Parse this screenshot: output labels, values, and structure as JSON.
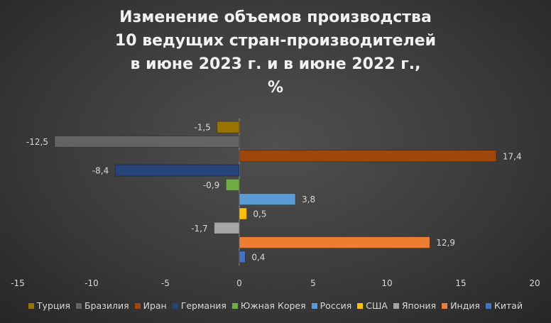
{
  "chart_data": {
    "type": "bar",
    "orientation": "horizontal",
    "title": "Изменение объемов производства\n10 ведущих стран-производителей\nв июне 2023 г. и в июне 2022 г.,\n%",
    "categories": [
      "Китай",
      "Индия",
      "Япония",
      "США",
      "Россия",
      "Южная Корея",
      "Германия",
      "Иран",
      "Бразилия",
      "Турция"
    ],
    "values": [
      0.4,
      12.9,
      -1.7,
      0.5,
      3.8,
      -0.9,
      -8.4,
      17.4,
      -12.5,
      -1.5
    ],
    "value_labels": [
      "0,4",
      "12,9",
      "-1,7",
      "0,5",
      "3,8",
      "-0,9",
      "-8,4",
      "17,4",
      "-12,5",
      "-1,5"
    ],
    "colors": [
      "#4472c4",
      "#ed7d31",
      "#a5a5a5",
      "#ffc000",
      "#5b9bd5",
      "#70ad47",
      "#264478",
      "#9e480e",
      "#636363",
      "#997300"
    ],
    "xlim": [
      -15,
      20
    ],
    "xticks": [
      -15,
      -10,
      -5,
      0,
      5,
      10,
      15,
      20
    ],
    "xtick_labels": [
      "-15",
      "-10",
      "-5",
      "0",
      "5",
      "10",
      "15",
      "20"
    ],
    "legend_order": [
      "Турция",
      "Бразилия",
      "Иран",
      "Германия",
      "Южная Корея",
      "Россия",
      "США",
      "Япония",
      "Индия",
      "Китай"
    ],
    "legend_position": "bottom",
    "grid": false
  }
}
